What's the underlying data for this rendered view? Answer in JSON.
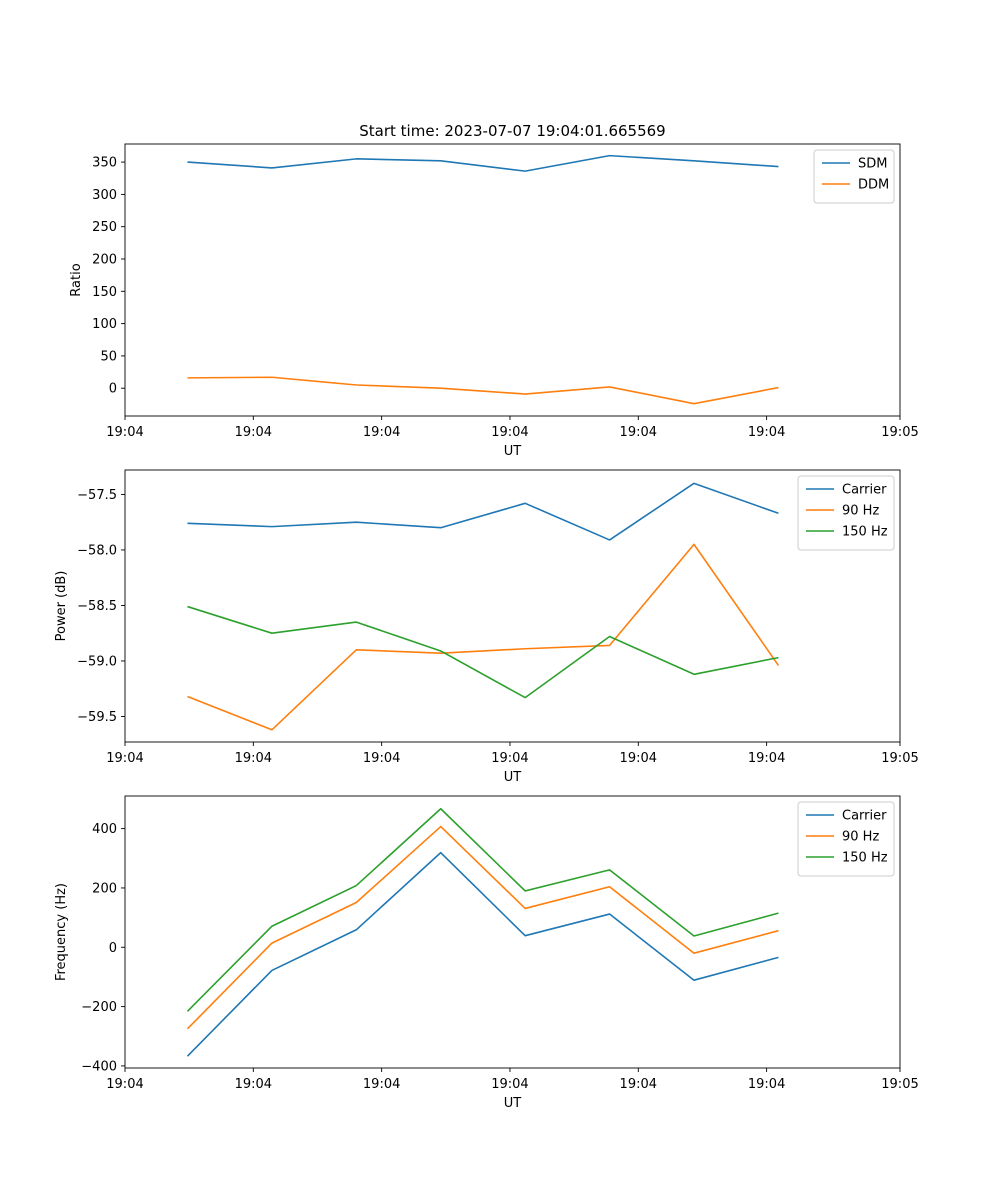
{
  "figure_title": "Start time: 2023-07-07 19:04:01.665569",
  "chart_data": [
    {
      "type": "line",
      "title": "Start time: 2023-07-07 19:04:01.665569",
      "xlabel": "UT",
      "ylabel": "Ratio",
      "x_index": [
        0,
        1,
        2,
        3,
        4,
        5,
        6,
        7
      ],
      "xlim": [
        -0.74,
        8.44
      ],
      "ylim": [
        -43,
        378
      ],
      "xtick_positions": [
        -0.74,
        0.78,
        2.3,
        3.82,
        5.34,
        6.86,
        8.44
      ],
      "xtick_labels": [
        "19:04",
        "19:04",
        "19:04",
        "19:04",
        "19:04",
        "19:04",
        "19:05"
      ],
      "ytick_values": [
        0,
        50,
        100,
        150,
        200,
        250,
        300,
        350
      ],
      "ytick_labels": [
        "0",
        "50",
        "100",
        "150",
        "200",
        "250",
        "300",
        "350"
      ],
      "legend_position": "top-right",
      "series": [
        {
          "name": "SDM",
          "color": "#1f77b4",
          "values": [
            350,
            341,
            355,
            352,
            336,
            360,
            352,
            343
          ]
        },
        {
          "name": "DDM",
          "color": "#ff7f0e",
          "values": [
            16,
            17,
            5,
            0,
            -9,
            2,
            -24,
            1
          ]
        }
      ]
    },
    {
      "type": "line",
      "title": "",
      "xlabel": "UT",
      "ylabel": "Power (dB)",
      "x_index": [
        0,
        1,
        2,
        3,
        4,
        5,
        6,
        7
      ],
      "xlim": [
        -0.74,
        8.44
      ],
      "ylim": [
        -59.73,
        -57.28
      ],
      "xtick_positions": [
        -0.74,
        0.78,
        2.3,
        3.82,
        5.34,
        6.86,
        8.44
      ],
      "xtick_labels": [
        "19:04",
        "19:04",
        "19:04",
        "19:04",
        "19:04",
        "19:04",
        "19:05"
      ],
      "ytick_values": [
        -59.5,
        -59.0,
        -58.5,
        -58.0,
        -57.5
      ],
      "ytick_labels": [
        "−59.5",
        "−59.0",
        "−58.5",
        "−58.0",
        "−57.5"
      ],
      "legend_position": "top-right",
      "series": [
        {
          "name": "Carrier",
          "color": "#1f77b4",
          "values": [
            -57.76,
            -57.79,
            -57.75,
            -57.8,
            -57.58,
            -57.91,
            -57.4,
            -57.67
          ]
        },
        {
          "name": "90 Hz",
          "color": "#ff7f0e",
          "values": [
            -59.32,
            -59.62,
            -58.9,
            -58.93,
            -58.89,
            -58.86,
            -57.95,
            -59.04
          ]
        },
        {
          "name": "150 Hz",
          "color": "#2ca02c",
          "values": [
            -58.51,
            -58.75,
            -58.65,
            -58.91,
            -59.33,
            -58.78,
            -59.12,
            -58.97
          ]
        }
      ]
    },
    {
      "type": "line",
      "title": "",
      "xlabel": "UT",
      "ylabel": "Frequency (Hz)",
      "x_index": [
        0,
        1,
        2,
        3,
        4,
        5,
        6,
        7
      ],
      "xlim": [
        -0.74,
        8.44
      ],
      "ylim": [
        -407,
        510
      ],
      "xtick_positions": [
        -0.74,
        0.78,
        2.3,
        3.82,
        5.34,
        6.86,
        8.44
      ],
      "xtick_labels": [
        "19:04",
        "19:04",
        "19:04",
        "19:04",
        "19:04",
        "19:04",
        "19:05"
      ],
      "ytick_values": [
        -400,
        -200,
        0,
        200,
        400
      ],
      "ytick_labels": [
        "−400",
        "−200",
        "0",
        "200",
        "400"
      ],
      "legend_position": "top-right",
      "series": [
        {
          "name": "Carrier",
          "color": "#1f77b4",
          "values": [
            -367,
            -78,
            59,
            319,
            39,
            112,
            -111,
            -34
          ]
        },
        {
          "name": "90 Hz",
          "color": "#ff7f0e",
          "values": [
            -275,
            14,
            151,
            407,
            131,
            204,
            -20,
            56
          ]
        },
        {
          "name": "150 Hz",
          "color": "#2ca02c",
          "values": [
            -216,
            71,
            208,
            467,
            190,
            261,
            38,
            115
          ]
        }
      ]
    }
  ]
}
